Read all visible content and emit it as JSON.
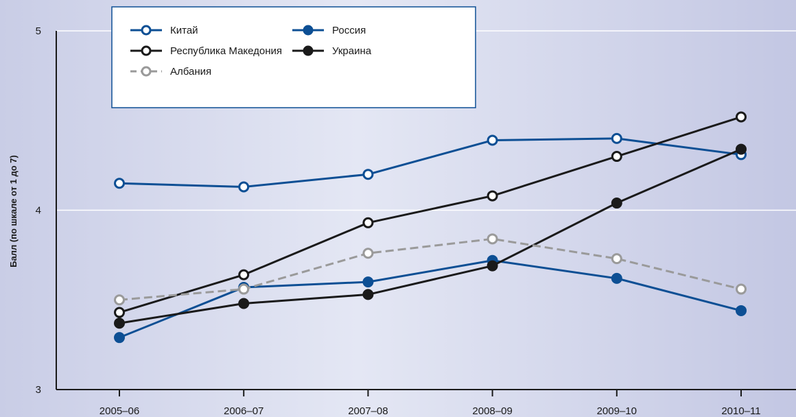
{
  "chart_data": {
    "type": "line",
    "title": "",
    "xlabel": "",
    "ylabel": "Балл (по шкале от 1 до 7)",
    "ylim": [
      3,
      5
    ],
    "yticks": [
      "3",
      "4",
      "5"
    ],
    "categories": [
      "2005–06",
      "2006–07",
      "2007–08",
      "2008–09",
      "2009–10",
      "2010–11"
    ],
    "grid": "horizontal",
    "legend_position": "top-left",
    "series": [
      {
        "name": "Китай",
        "values": [
          4.15,
          4.13,
          4.2,
          4.39,
          4.4,
          4.31
        ],
        "color": "#0d4f94",
        "marker": "hollow",
        "dash": false
      },
      {
        "name": "Россия",
        "values": [
          3.29,
          3.57,
          3.6,
          3.72,
          3.62,
          3.44
        ],
        "color": "#0d4f94",
        "marker": "filled",
        "dash": false
      },
      {
        "name": "Республика Македония",
        "values": [
          3.43,
          3.64,
          3.93,
          4.08,
          4.3,
          4.52
        ],
        "color": "#1a1a1a",
        "marker": "hollow",
        "dash": false
      },
      {
        "name": "Украина",
        "values": [
          3.37,
          3.48,
          3.53,
          3.69,
          4.04,
          4.34
        ],
        "color": "#1a1a1a",
        "marker": "filled",
        "dash": false
      },
      {
        "name": "Албания",
        "values": [
          3.5,
          3.56,
          3.76,
          3.84,
          3.73,
          3.56
        ],
        "color": "#9a9a9a",
        "marker": "hollow",
        "dash": true
      }
    ]
  }
}
